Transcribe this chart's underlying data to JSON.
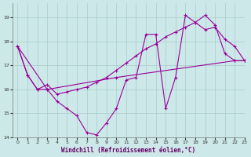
{
  "xlabel": "Windchill (Refroidissement éolien,°C)",
  "background_color": "#cce8e8",
  "grid_color": "#aacccc",
  "line_color": "#990099",
  "curve1_x": [
    0,
    1,
    2,
    3,
    4,
    5,
    6,
    7,
    8,
    9,
    10,
    11,
    12,
    13,
    14,
    15,
    16,
    17,
    18,
    19,
    20,
    21,
    22,
    23
  ],
  "curve1_y": [
    17.8,
    16.6,
    16.0,
    16.0,
    15.5,
    15.2,
    14.9,
    14.2,
    14.1,
    14.6,
    15.2,
    16.4,
    16.5,
    18.3,
    18.3,
    15.2,
    16.5,
    19.1,
    18.8,
    18.5,
    18.6,
    18.1,
    17.8,
    17.2
  ],
  "curve2_x": [
    0,
    1,
    2,
    3,
    4,
    5,
    6,
    7,
    8,
    9,
    10,
    11,
    12,
    13,
    14,
    15,
    16,
    17,
    18,
    19,
    20,
    21,
    22,
    23
  ],
  "curve2_y": [
    17.8,
    16.6,
    16.0,
    16.2,
    15.8,
    15.9,
    16.0,
    16.1,
    16.3,
    16.5,
    16.8,
    17.1,
    17.4,
    17.7,
    17.9,
    18.2,
    18.4,
    18.6,
    18.8,
    19.1,
    18.7,
    17.5,
    17.2,
    17.2
  ],
  "curve3_x": [
    0,
    3,
    10,
    22,
    23
  ],
  "curve3_y": [
    17.8,
    16.0,
    16.5,
    17.2,
    17.2
  ],
  "ylim": [
    14.0,
    19.6
  ],
  "xlim": [
    -0.5,
    23
  ],
  "yticks": [
    14,
    15,
    16,
    17,
    18,
    19
  ],
  "xticks": [
    0,
    1,
    2,
    3,
    4,
    5,
    6,
    7,
    8,
    9,
    10,
    11,
    12,
    13,
    14,
    15,
    16,
    17,
    18,
    19,
    20,
    21,
    22,
    23
  ]
}
